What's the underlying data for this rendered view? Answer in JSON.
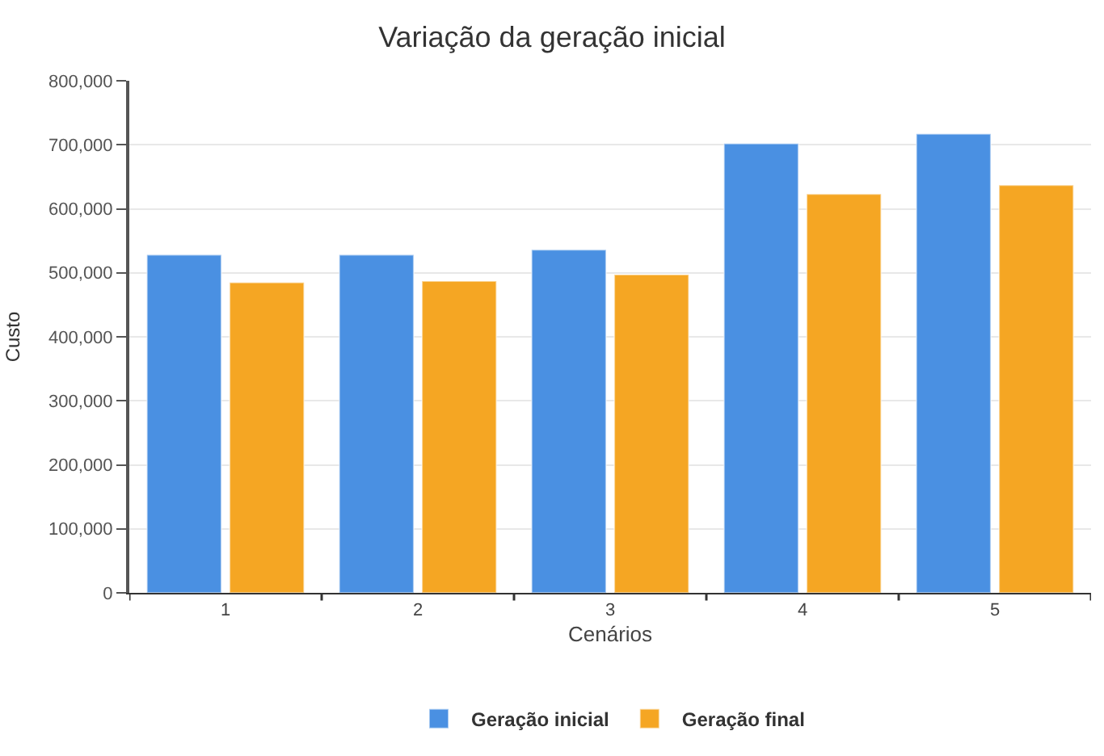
{
  "chart_data": {
    "type": "bar",
    "title": "Variação da geração inicial",
    "xlabel": "Cenários",
    "ylabel": "Custo",
    "categories": [
      "1",
      "2",
      "3",
      "4",
      "5"
    ],
    "series": [
      {
        "name": "Geração inicial",
        "color": "#4a90e2",
        "values": [
          528000,
          528000,
          536000,
          702000,
          717000
        ]
      },
      {
        "name": "Geração final",
        "color": "#f5a623",
        "values": [
          485000,
          487000,
          497000,
          623000,
          637000
        ]
      }
    ],
    "ylim": [
      0,
      800000
    ],
    "yticks": [
      {
        "value": 0,
        "label": "0"
      },
      {
        "value": 100000,
        "label": "100,000"
      },
      {
        "value": 200000,
        "label": "200,000"
      },
      {
        "value": 300000,
        "label": "300,000"
      },
      {
        "value": 400000,
        "label": "400,000"
      },
      {
        "value": 500000,
        "label": "500,000"
      },
      {
        "value": 600000,
        "label": "600,000"
      },
      {
        "value": 700000,
        "label": "700,000"
      },
      {
        "value": 800000,
        "label": "800,000"
      }
    ],
    "grid": "y",
    "legend": "bottom"
  }
}
